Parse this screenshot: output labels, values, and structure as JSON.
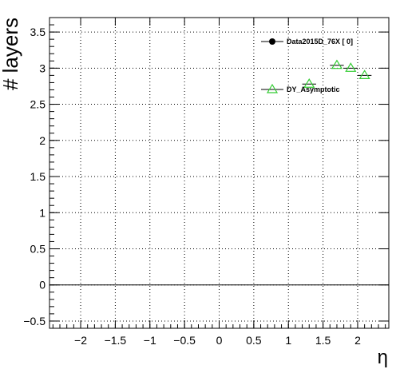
{
  "chart_data": {
    "type": "scatter",
    "xlabel": "η",
    "ylabel": "# layers",
    "xlim": [
      -2.45,
      2.45
    ],
    "ylim": [
      -0.6,
      3.7
    ],
    "xticks": [
      -2,
      -1.5,
      -1,
      -0.5,
      0,
      0.5,
      1,
      1.5,
      2
    ],
    "xtick_labels": [
      "−2",
      "−1.5",
      "−1",
      "−0.5",
      "0",
      "0.5",
      "1",
      "1.5",
      "2"
    ],
    "yticks": [
      -0.5,
      0,
      0.5,
      1,
      1.5,
      2,
      2.5,
      3,
      3.5
    ],
    "ytick_labels": [
      "−0.5",
      "0",
      "0.5",
      "1",
      "1.5",
      "2",
      "2.5",
      "3",
      "3.5"
    ],
    "grid": true,
    "reference_line_y": 0,
    "legend_position": "top-right",
    "series": [
      {
        "name": "Data2015D_76X [        0]",
        "marker": "filled-circle",
        "color": "#000000",
        "x": [],
        "y": []
      },
      {
        "name": "DY_Asymptotic",
        "marker": "open-triangle",
        "color": "#33cc33",
        "x": [
          1.3,
          1.7,
          1.9,
          2.1
        ],
        "y": [
          2.78,
          3.04,
          3.0,
          2.9
        ],
        "xerr": [
          0.1,
          0.1,
          0.1,
          0.1
        ]
      }
    ]
  }
}
